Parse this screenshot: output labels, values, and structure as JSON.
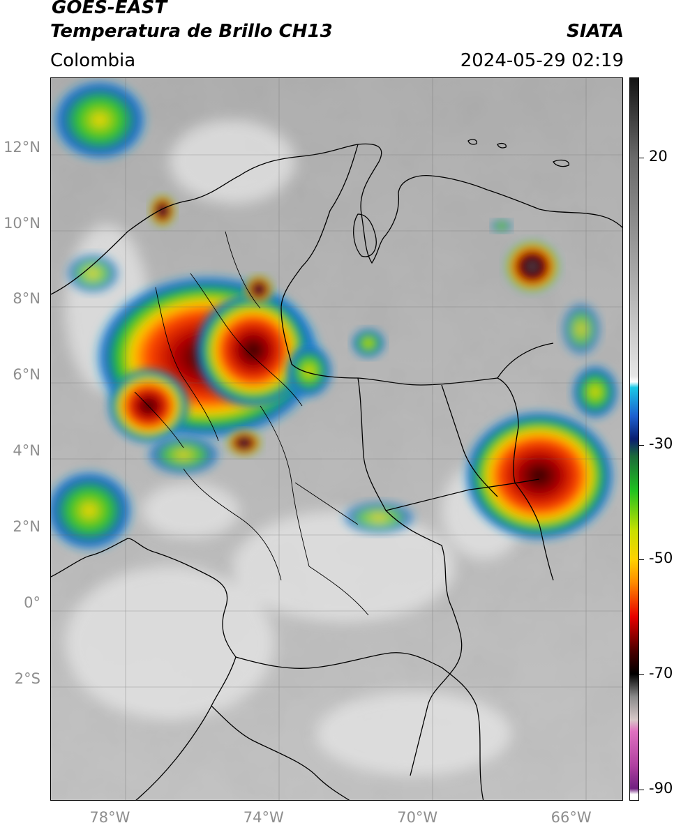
{
  "header": {
    "satellite": "GOES-EAST",
    "product": "Temperatura de Brillo CH13",
    "region": "Colombia",
    "brand": "SIATA",
    "timestamp": "2024-05-29 02:19"
  },
  "map": {
    "lat_labels": [
      {
        "text": "12°N",
        "lat": 12
      },
      {
        "text": "10°N",
        "lat": 10
      },
      {
        "text": "8°N",
        "lat": 8
      },
      {
        "text": "6°N",
        "lat": 6
      },
      {
        "text": "4°N",
        "lat": 4
      },
      {
        "text": "2°N",
        "lat": 2
      },
      {
        "text": "0°",
        "lat": 0
      },
      {
        "text": "2°S",
        "lat": -2
      }
    ],
    "lon_labels": [
      {
        "text": "78°W",
        "lon": -78
      },
      {
        "text": "74°W",
        "lon": -74
      },
      {
        "text": "70°W",
        "lon": -70
      },
      {
        "text": "66°W",
        "lon": -66
      }
    ],
    "extent": {
      "lon_min": -79.55,
      "lon_max": -64.65,
      "lat_min": -5.2,
      "lat_max": 13.85
    }
  },
  "colorbar": {
    "title": "",
    "ticks": [
      {
        "text": "20",
        "value": 20
      },
      {
        "text": "-30",
        "value": -30
      },
      {
        "text": "-50",
        "value": -50
      },
      {
        "text": "-70",
        "value": -70
      },
      {
        "text": "-90",
        "value": -90
      }
    ],
    "range": [
      -92,
      34
    ]
  }
}
